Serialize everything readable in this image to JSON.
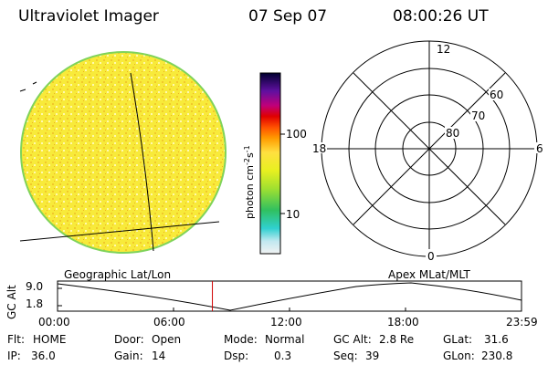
{
  "header": {
    "instrument": "Ultraviolet Imager",
    "date": "07 Sep 07",
    "time": "08:00:26 UT"
  },
  "colorbar": {
    "unit": "photon cm",
    "exp1": "-2",
    "s": "s",
    "exp2": "-1",
    "ticks": [
      "100",
      "10"
    ]
  },
  "left_panel": {
    "label": "Geographic Lat/Lon"
  },
  "polar_plot": {
    "label": "Apex  MLat/MLT",
    "mlt_labels": {
      "top": "12",
      "left": "18",
      "right": "6",
      "bottom": "0"
    },
    "lat_labels": [
      "60",
      "70",
      "80"
    ]
  },
  "altitude_plot": {
    "ylabel": "GC Alt",
    "yticks": [
      "9.0",
      "1.8"
    ],
    "xticks": [
      "00:00",
      "06:00",
      "12:00",
      "18:00",
      "23:59"
    ],
    "current_time_hours": 8.01
  },
  "status": {
    "flt_label": "Flt:",
    "flt_value": "HOME",
    "ip_label": "IP:",
    "ip_value": "36.0",
    "door_label": "Door:",
    "door_value": "Open",
    "gain_label": "Gain:",
    "gain_value": "14",
    "mode_label": "Mode:",
    "mode_value": "Normal",
    "dsp_label": "Dsp:",
    "dsp_value": "0.3",
    "gcalt_label": "GC Alt:",
    "gcalt_value": "2.8 Re",
    "seq_label": "Seq:",
    "seq_value": "39",
    "glat_label": "GLat:",
    "glat_value": "31.6",
    "glon_label": "GLon:",
    "glon_value": "230.8"
  },
  "colors": {
    "disk_fill": "#f8ea3a",
    "disk_rim": "#7fd35a",
    "marker": "#d00000"
  }
}
